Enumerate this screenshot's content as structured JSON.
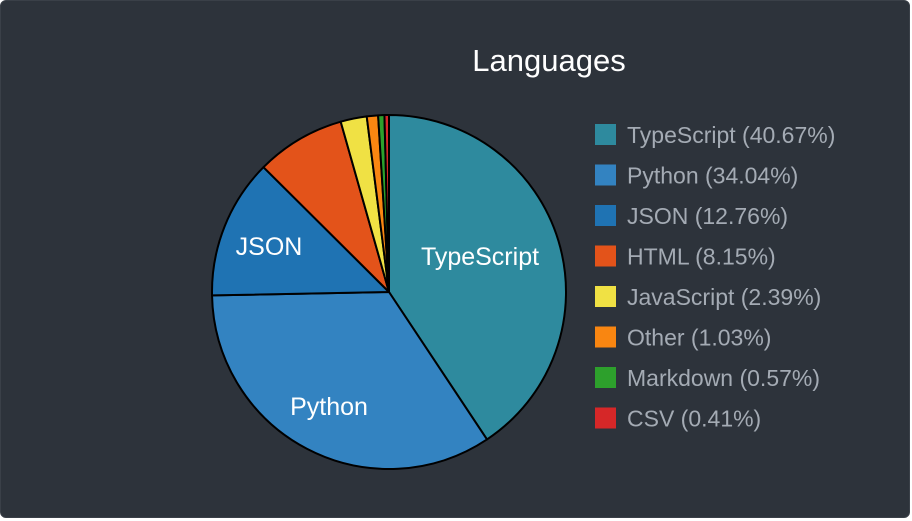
{
  "chart_data": {
    "type": "pie",
    "title": "Languages",
    "slices": [
      {
        "name": "TypeScript",
        "legend": "TypeScript (40.67%)",
        "value": 40.67,
        "color": "#2e8a9e",
        "show_label": true
      },
      {
        "name": "Python",
        "legend": "Python (34.04%)",
        "value": 34.04,
        "color": "#3383c1",
        "show_label": true
      },
      {
        "name": "JSON",
        "legend": "JSON (12.76%)",
        "value": 12.76,
        "color": "#1f73b3",
        "show_label": true
      },
      {
        "name": "HTML",
        "legend": "HTML (8.15%)",
        "value": 8.15,
        "color": "#e3531a",
        "show_label": false
      },
      {
        "name": "JavaScript",
        "legend": "JavaScript (2.39%)",
        "value": 2.39,
        "color": "#f0e144",
        "show_label": false
      },
      {
        "name": "Other",
        "legend": "Other (1.03%)",
        "value": 1.03,
        "color": "#f98611",
        "show_label": false
      },
      {
        "name": "Markdown",
        "legend": "Markdown (0.57%)",
        "value": 0.57,
        "color": "#2da02c",
        "show_label": false
      },
      {
        "name": "CSV",
        "legend": "CSV (0.41%)",
        "value": 0.41,
        "color": "#d62728",
        "show_label": false
      }
    ],
    "legend_position": "right",
    "start_angle": "12 o'clock",
    "direction": "clockwise"
  },
  "colors": {
    "background": "#2d333b",
    "title": "#ffffff",
    "legend_text": "#a4abb4",
    "slice_border": "#000000"
  }
}
